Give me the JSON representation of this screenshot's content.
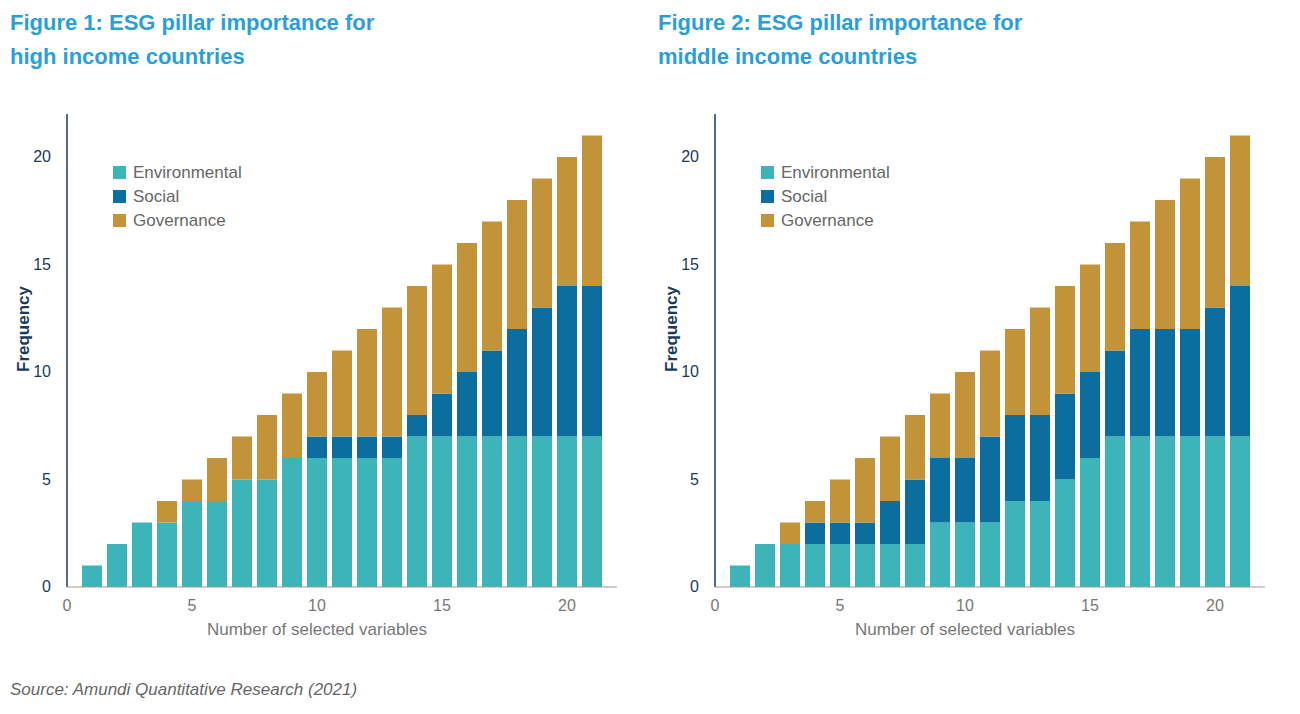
{
  "chart_data": [
    {
      "type": "bar",
      "stacked": true,
      "title": "Figure 1: ESG pillar importance for high income countries",
      "x_label": "Number of selected variables",
      "y_label": "Frequency",
      "x": [
        1,
        2,
        3,
        4,
        5,
        6,
        7,
        8,
        9,
        10,
        11,
        12,
        13,
        14,
        15,
        16,
        17,
        18,
        19,
        20,
        21
      ],
      "series": [
        {
          "name": "Environmental",
          "color": "#3cb4b8",
          "values": [
            1,
            2,
            3,
            3,
            4,
            4,
            5,
            5,
            6,
            6,
            6,
            6,
            6,
            7,
            7,
            7,
            7,
            7,
            7,
            7,
            7
          ]
        },
        {
          "name": "Social",
          "color": "#0b6e9f",
          "values": [
            0,
            0,
            0,
            0,
            0,
            0,
            0,
            0,
            0,
            1,
            1,
            1,
            1,
            1,
            2,
            3,
            4,
            5,
            6,
            7,
            7
          ]
        },
        {
          "name": "Governance",
          "color": "#c29338",
          "values": [
            0,
            0,
            0,
            1,
            1,
            2,
            2,
            3,
            3,
            3,
            4,
            5,
            6,
            6,
            6,
            6,
            6,
            6,
            6,
            6,
            7
          ]
        }
      ],
      "xlim": [
        0,
        22
      ],
      "xticks": [
        0,
        5,
        10,
        15,
        20
      ],
      "ylim": [
        0,
        22
      ],
      "yticks": [
        0,
        5,
        10,
        15,
        20
      ],
      "grid": false,
      "legend": "upper left"
    },
    {
      "type": "bar",
      "stacked": true,
      "title": "Figure 2: ESG pillar importance for middle income countries",
      "x_label": "Number of selected variables",
      "y_label": "Frequency",
      "x": [
        1,
        2,
        3,
        4,
        5,
        6,
        7,
        8,
        9,
        10,
        11,
        12,
        13,
        14,
        15,
        16,
        17,
        18,
        19,
        20,
        21
      ],
      "series": [
        {
          "name": "Environmental",
          "color": "#3cb4b8",
          "values": [
            1,
            2,
            2,
            2,
            2,
            2,
            2,
            2,
            3,
            3,
            3,
            4,
            4,
            5,
            6,
            7,
            7,
            7,
            7,
            7,
            7
          ]
        },
        {
          "name": "Social",
          "color": "#0b6e9f",
          "values": [
            0,
            0,
            0,
            1,
            1,
            1,
            2,
            3,
            3,
            3,
            4,
            4,
            4,
            4,
            4,
            4,
            5,
            5,
            5,
            6,
            7
          ]
        },
        {
          "name": "Governance",
          "color": "#c29338",
          "values": [
            0,
            0,
            1,
            1,
            2,
            3,
            3,
            3,
            3,
            4,
            4,
            4,
            5,
            5,
            5,
            5,
            5,
            6,
            7,
            7,
            7
          ]
        }
      ],
      "xlim": [
        0,
        22
      ],
      "xticks": [
        0,
        5,
        10,
        15,
        20
      ],
      "ylim": [
        0,
        22
      ],
      "yticks": [
        0,
        5,
        10,
        15,
        20
      ],
      "grid": false,
      "legend": "upper left"
    }
  ],
  "source": "Source: Amundi Quantitative Research (2021)"
}
